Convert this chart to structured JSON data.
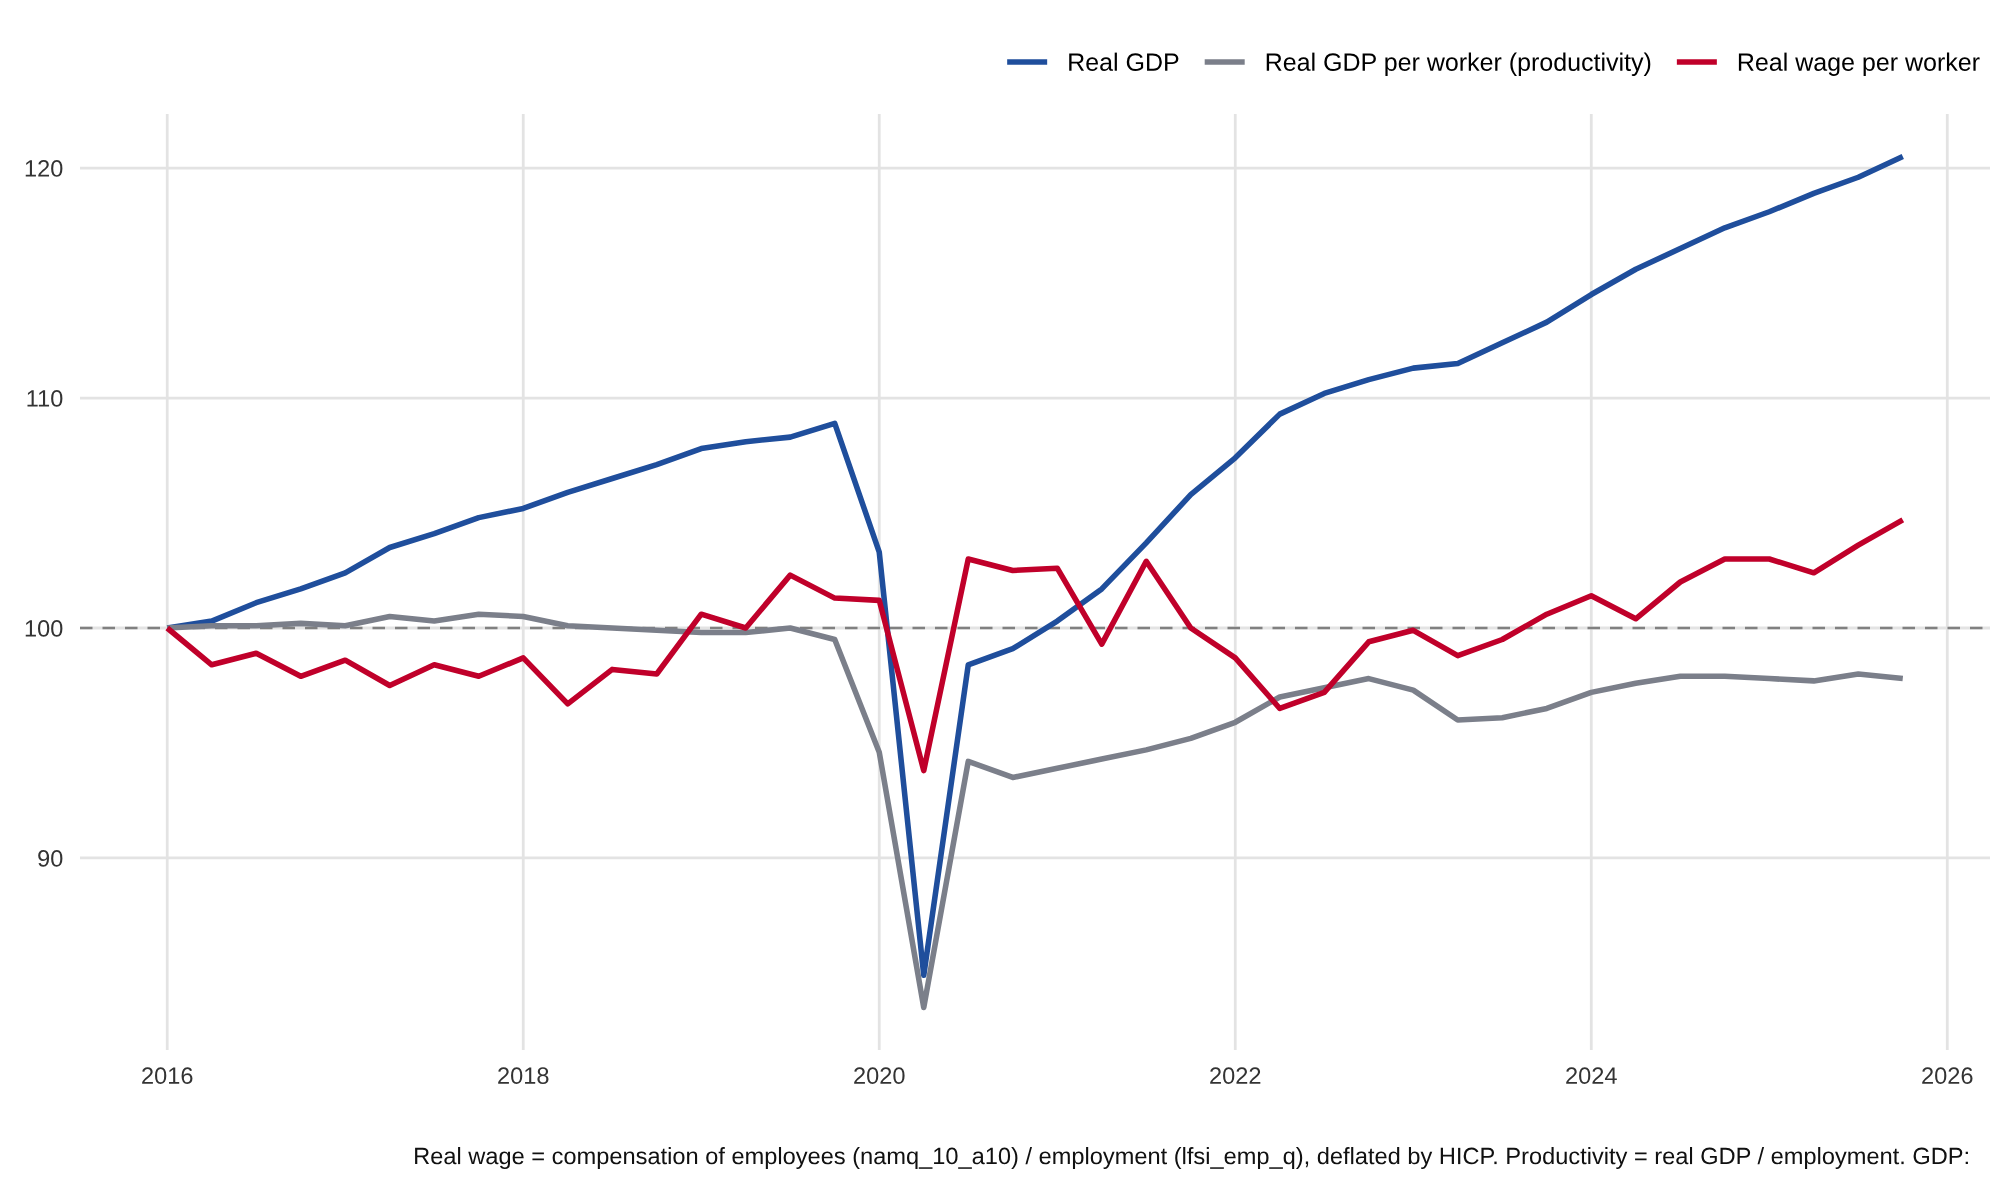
{
  "chart_data": {
    "type": "line",
    "x": [
      2016,
      2016.25,
      2016.5,
      2016.75,
      2017,
      2017.25,
      2017.5,
      2017.75,
      2018,
      2018.25,
      2018.5,
      2018.75,
      2019,
      2019.25,
      2019.5,
      2019.75,
      2020,
      2020.25,
      2020.5,
      2020.75,
      2021,
      2021.25,
      2021.5,
      2021.75,
      2022,
      2022.25,
      2022.5,
      2022.75,
      2023,
      2023.25,
      2023.5,
      2023.75,
      2024,
      2024.25,
      2024.5,
      2024.75,
      2025,
      2025.25,
      2025.5,
      2025.75
    ],
    "series": [
      {
        "name": "Real GDP",
        "color": "#1f4e9c",
        "values": [
          100,
          100.3,
          101.1,
          101.7,
          102.4,
          103.5,
          104.1,
          104.8,
          105.2,
          105.9,
          106.5,
          107.1,
          107.8,
          108.1,
          108.3,
          108.9,
          103.3,
          84.9,
          98.4,
          99.1,
          100.3,
          101.7,
          103.7,
          105.8,
          107.4,
          109.3,
          110.2,
          110.8,
          111.3,
          111.5,
          112.4,
          113.3,
          114.5,
          115.6,
          116.5,
          117.4,
          118.1,
          118.9,
          119.6,
          120.5
        ]
      },
      {
        "name": "Real GDP per worker (productivity)",
        "color": "#7b7f8a",
        "values": [
          100,
          100.1,
          100.1,
          100.2,
          100.1,
          100.5,
          100.3,
          100.6,
          100.5,
          100.1,
          100.0,
          99.9,
          99.8,
          99.8,
          100.0,
          99.5,
          94.6,
          83.5,
          94.2,
          93.5,
          93.9,
          94.3,
          94.7,
          95.2,
          95.9,
          97.0,
          97.4,
          97.8,
          97.3,
          96.0,
          96.1,
          96.5,
          97.2,
          97.6,
          97.9,
          97.9,
          97.8,
          97.7,
          98.0,
          97.8
        ]
      },
      {
        "name": "Real wage per worker",
        "color": "#c0002a",
        "values": [
          100,
          98.4,
          98.9,
          97.9,
          98.6,
          97.5,
          98.4,
          97.9,
          98.7,
          96.7,
          98.2,
          98.0,
          100.6,
          100.0,
          102.3,
          101.3,
          101.2,
          93.8,
          103.0,
          102.5,
          102.6,
          99.3,
          102.9,
          100.0,
          98.7,
          96.5,
          97.2,
          99.4,
          99.9,
          98.8,
          99.5,
          100.6,
          101.4,
          100.4,
          102.0,
          103.0,
          103.0,
          102.4,
          103.6,
          104.7
        ]
      }
    ],
    "xlim": [
      2015.51,
      2026.24
    ],
    "xticks": [
      2016,
      2018,
      2020,
      2022,
      2024,
      2026
    ],
    "ylim": [
      81.65,
      122.35
    ],
    "yticks": [
      90,
      100,
      110,
      120
    ],
    "ref_lines": [
      {
        "axis": "y",
        "value": 100,
        "label": null,
        "color": "#808080",
        "line_style": "dashed"
      }
    ],
    "grid": true,
    "legend": "top right",
    "line_style": "solid",
    "marker": "none",
    "annotations": [
      "Real wage = compensation of employees (namq_10_a10) / employment (lfsi_emp_q), deflated by HICP. Productivity = real GDP / employment. GDP:"
    ]
  }
}
